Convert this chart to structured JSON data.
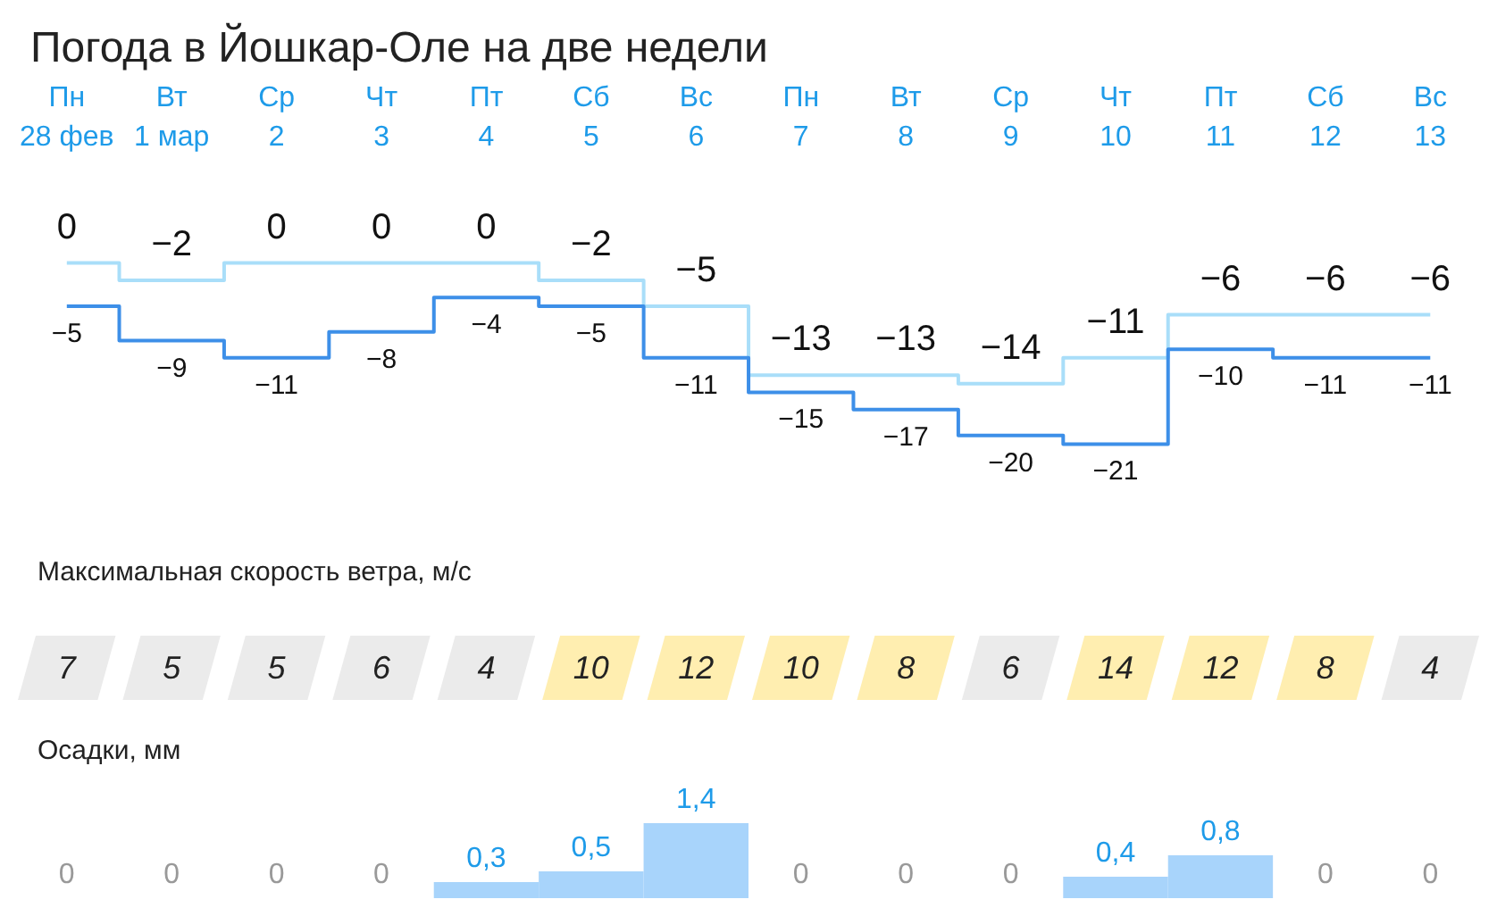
{
  "chart_data": [
    {
      "type": "step",
      "title": "Погода в Йошкар-Оле на две недели",
      "categories": [
        "Пн\n28 фев",
        "Вт\n1 мар",
        "Ср\n2",
        "Чт\n3",
        "Пт\n4",
        "Сб\n5",
        "Вс\n6",
        "Пн\n7",
        "Вт\n8",
        "Ср\n9",
        "Чт\n10",
        "Пт\n11",
        "Сб\n12",
        "Вс\n13"
      ],
      "series": [
        {
          "color": "#a9def9",
          "values": [
            0,
            -2,
            0,
            0,
            0,
            -2,
            -5,
            -13,
            -13,
            -14,
            -11,
            -6,
            -6,
            -6
          ]
        },
        {
          "color": "#3d8fe8",
          "values": [
            -5,
            -9,
            -11,
            -8,
            -4,
            -5,
            -11,
            -15,
            -17,
            -20,
            -21,
            -10,
            -11,
            -11
          ]
        }
      ],
      "data_labels": true,
      "grid": false
    },
    {
      "type": "other",
      "title": "Максимальная скорость ветра, м/с",
      "categories": [
        null,
        null,
        null,
        null,
        null,
        null,
        null,
        null,
        null,
        null,
        null,
        null,
        null,
        null
      ],
      "values": [
        7,
        5,
        5,
        6,
        4,
        10,
        12,
        10,
        8,
        6,
        14,
        12,
        8,
        4
      ],
      "colors": [
        "#ebebeb",
        "#ebebeb",
        "#ebebeb",
        "#ebebeb",
        "#ebebeb",
        "#ffeeb0",
        "#ffeeb0",
        "#ffeeb0",
        "#ffeeb0",
        "#ebebeb",
        "#ffeeb0",
        "#ffeeb0",
        "#ffeeb0",
        "#ebebeb"
      ],
      "data_labels": true
    },
    {
      "type": "bar",
      "title": "Осадки, мм",
      "categories": [
        null,
        null,
        null,
        null,
        null,
        null,
        null,
        null,
        null,
        null,
        null,
        null,
        null,
        null
      ],
      "values": [
        0,
        0,
        0,
        0,
        0.3,
        0.5,
        1.4,
        0,
        0,
        0,
        0.4,
        0.8,
        0,
        0
      ],
      "value_labels": [
        "0",
        "0",
        "0",
        "0",
        "0,3",
        "0,5",
        "1,4",
        "0",
        "0",
        "0",
        "0,4",
        "0,8",
        "0",
        "0"
      ],
      "color": "#a8d4fb",
      "grid": false
    }
  ]
}
